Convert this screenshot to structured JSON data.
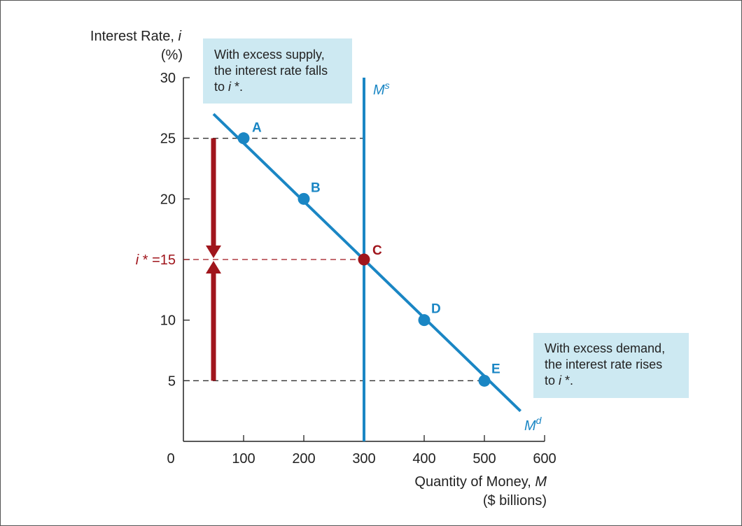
{
  "chart_data": {
    "type": "line",
    "xlabel": "Quantity of Money, M",
    "xlabel_unit": "($ billions)",
    "ylabel": "Interest Rate, i",
    "ylabel_unit": "(%)",
    "xlim": [
      0,
      600
    ],
    "ylim": [
      0,
      30
    ],
    "x_ticks": [
      100,
      200,
      300,
      400,
      500,
      600
    ],
    "y_ticks": [
      5,
      10,
      20,
      25,
      30
    ],
    "origin_label": "0",
    "grid": false,
    "demand_curve": {
      "name": "M",
      "superscript": "d",
      "color": "#1a86c4",
      "start": [
        50,
        27
      ],
      "end": [
        560,
        2.5
      ],
      "points": [
        {
          "label": "A",
          "x": 100,
          "y": 25
        },
        {
          "label": "B",
          "x": 200,
          "y": 20
        },
        {
          "label": "C",
          "x": 300,
          "y": 15
        },
        {
          "label": "D",
          "x": 400,
          "y": 10
        },
        {
          "label": "E",
          "x": 500,
          "y": 5
        }
      ]
    },
    "supply_curve": {
      "name": "M",
      "superscript": "s",
      "color": "#1a86c4",
      "x": 300,
      "y_top": 30
    },
    "equilibrium": {
      "label": "C",
      "x": 300,
      "y": 15,
      "color": "#a0151c",
      "axis_label_prefix": "i",
      "axis_label_star": "*",
      "axis_label_suffix": "=15"
    },
    "reference_lines": [
      {
        "y": 25,
        "x_end": 300
      },
      {
        "y": 15,
        "x_end": 300
      },
      {
        "y": 5,
        "x_end": 500
      }
    ],
    "arrows": [
      {
        "x": 50,
        "from_y": 25,
        "to_y": 15,
        "color": "#a0151c"
      },
      {
        "x": 50,
        "from_y": 5,
        "to_y": 15,
        "color": "#a0151c"
      }
    ],
    "annotations": [
      {
        "lines": [
          "With excess supply,",
          "the interest rate falls"
        ],
        "last_prefix": "to ",
        "last_italic": "i",
        "last_suffix": " *."
      },
      {
        "lines": [
          "With excess demand,",
          "the interest rate rises"
        ],
        "last_prefix": "to ",
        "last_italic": "i",
        "last_suffix": " *."
      }
    ]
  }
}
